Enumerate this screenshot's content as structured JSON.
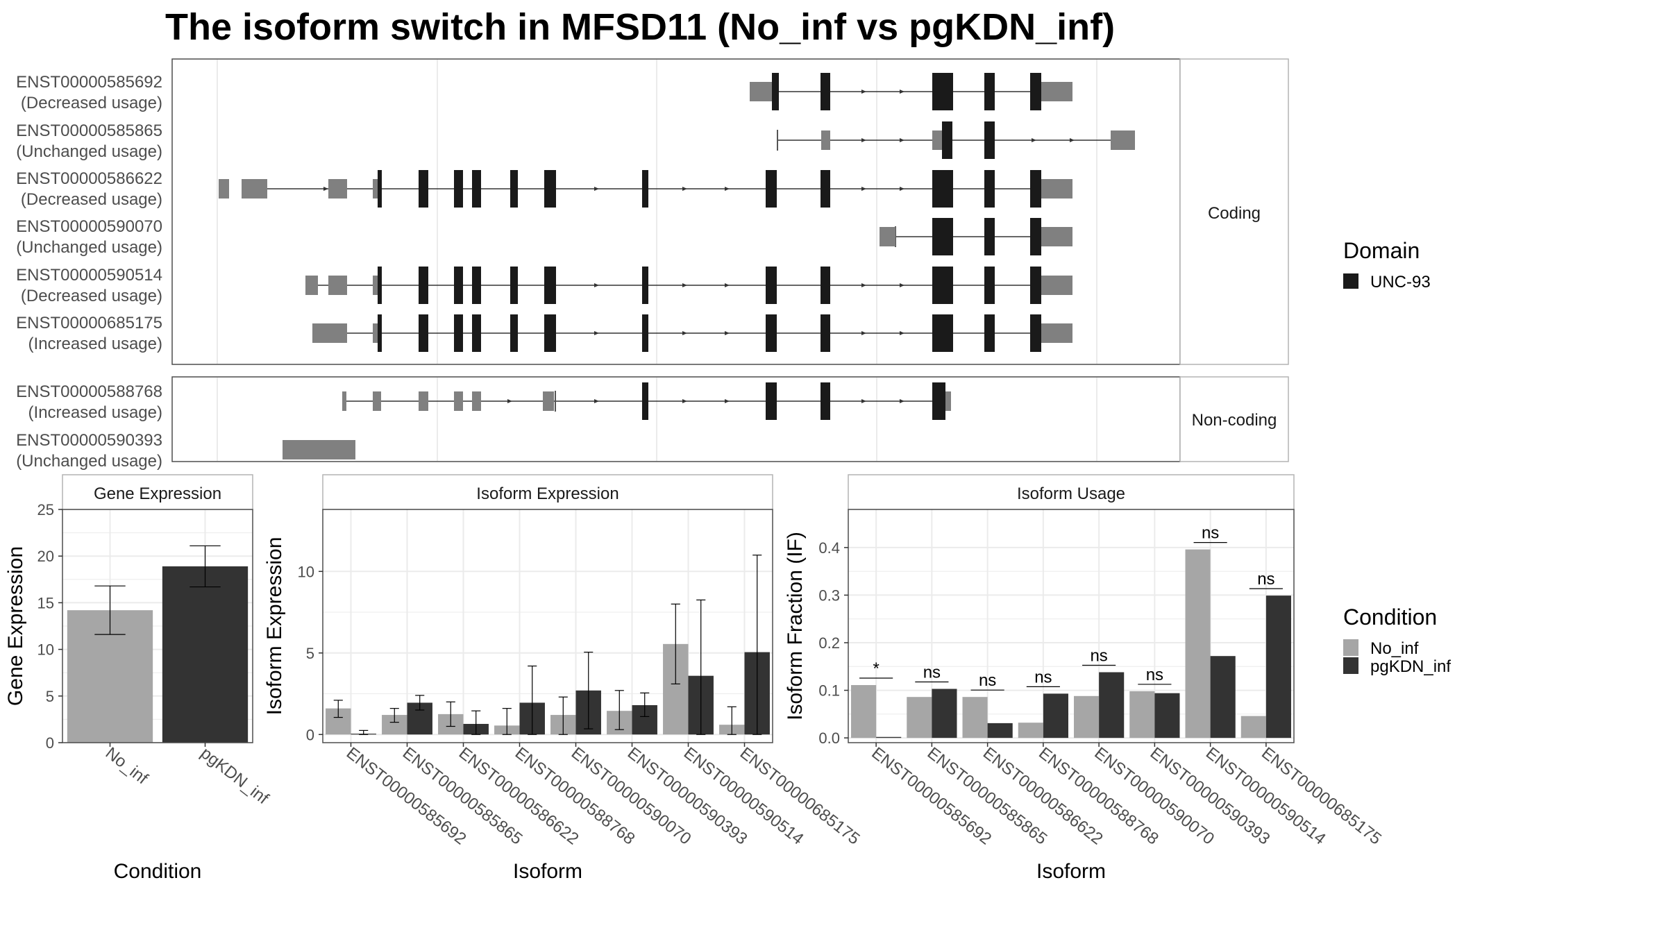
{
  "title": "The isoform switch in MFSD11 (No_inf vs pgKDN_inf)",
  "colors": {
    "no_inf": "#a6a6a6",
    "pgkdn_inf": "#333333",
    "domain": "#1a1a1a",
    "utr": "#808080",
    "panel_border": "#4d4d4d",
    "strip_border": "#b3b3b3",
    "strip_fill": "#ffffff",
    "grid": "#ebebeb",
    "axis_text": "#4d4d4d"
  },
  "structure": {
    "panels": [
      {
        "strip": "Coding",
        "isoforms": [
          {
            "id": "ENST00000585692",
            "status": "(Decreased usage)"
          },
          {
            "id": "ENST00000585865",
            "status": "(Unchanged usage)"
          },
          {
            "id": "ENST00000586622",
            "status": "(Decreased usage)"
          },
          {
            "id": "ENST00000590070",
            "status": "(Unchanged usage)"
          },
          {
            "id": "ENST00000590514",
            "status": "(Decreased usage)"
          },
          {
            "id": "ENST00000685175",
            "status": "(Increased usage)"
          }
        ]
      },
      {
        "strip": "Non-coding",
        "isoforms": [
          {
            "id": "ENST00000588768",
            "status": "(Increased usage)"
          },
          {
            "id": "ENST00000590393",
            "status": "(Unchanged usage)"
          }
        ]
      }
    ],
    "legend": {
      "title": "Domain",
      "label": "UNC-93"
    }
  },
  "chart_data": [
    {
      "type": "bar",
      "title": "Gene Expression",
      "xlabel": "Condition",
      "ylabel": "Gene Expression",
      "categories": [
        "No_inf",
        "pgKDN_inf"
      ],
      "values": [
        14.2,
        18.9
      ],
      "error_low": [
        11.6,
        16.7
      ],
      "error_high": [
        16.8,
        21.1
      ],
      "ylim": [
        0,
        25
      ],
      "yticks": [
        0,
        5,
        10,
        15,
        20,
        25
      ]
    },
    {
      "type": "bar",
      "title": "Isoform Expression",
      "xlabel": "Isoform",
      "ylabel": "Isoform Expression",
      "categories": [
        "ENST00000585692",
        "ENST00000585865",
        "ENST00000586622",
        "ENST00000588768",
        "ENST00000590070",
        "ENST00000590393",
        "ENST00000590514",
        "ENST00000685175"
      ],
      "series": [
        {
          "name": "No_inf",
          "values": [
            1.6,
            1.2,
            1.25,
            0.55,
            1.2,
            1.45,
            5.55,
            0.6
          ],
          "error_low": [
            1.05,
            0.75,
            0.5,
            0,
            0,
            0.3,
            3.1,
            0
          ],
          "error_high": [
            2.1,
            1.6,
            2.0,
            1.6,
            2.3,
            2.7,
            8.0,
            1.7
          ]
        },
        {
          "name": "pgKDN_inf",
          "values": [
            0.05,
            1.95,
            0.65,
            1.95,
            2.7,
            1.8,
            3.6,
            5.05
          ],
          "error_low": [
            0,
            1.5,
            0,
            0,
            0.35,
            1.1,
            0,
            0
          ],
          "error_high": [
            0.25,
            2.4,
            1.45,
            4.2,
            5.05,
            2.55,
            8.25,
            11.0
          ]
        }
      ],
      "ylim": [
        -0.5,
        13.8
      ],
      "yticks": [
        0,
        5,
        10
      ]
    },
    {
      "type": "bar",
      "title": "Isoform Usage",
      "xlabel": "Isoform",
      "ylabel": "Isoform Fraction (IF)",
      "categories": [
        "ENST00000585692",
        "ENST00000585865",
        "ENST00000586622",
        "ENST00000588768",
        "ENST00000590070",
        "ENST00000590393",
        "ENST00000590514",
        "ENST00000685175"
      ],
      "series": [
        {
          "name": "No_inf",
          "values": [
            0.111,
            0.086,
            0.086,
            0.032,
            0.088,
            0.098,
            0.396,
            0.046
          ]
        },
        {
          "name": "pgKDN_inf",
          "values": [
            0.002,
            0.103,
            0.031,
            0.093,
            0.138,
            0.094,
            0.172,
            0.299
          ]
        }
      ],
      "significance": [
        "*",
        "ns",
        "ns",
        "ns",
        "ns",
        "ns",
        "ns",
        "ns"
      ],
      "ylim": [
        -0.01,
        0.48
      ],
      "yticks": [
        0.0,
        0.1,
        0.2,
        0.3,
        0.4
      ],
      "ytick_labels": [
        "0.0",
        "0.1",
        "0.2",
        "0.3",
        "0.4"
      ]
    }
  ],
  "legend": {
    "title": "Condition",
    "items": [
      "No_inf",
      "pgKDN_inf"
    ]
  }
}
